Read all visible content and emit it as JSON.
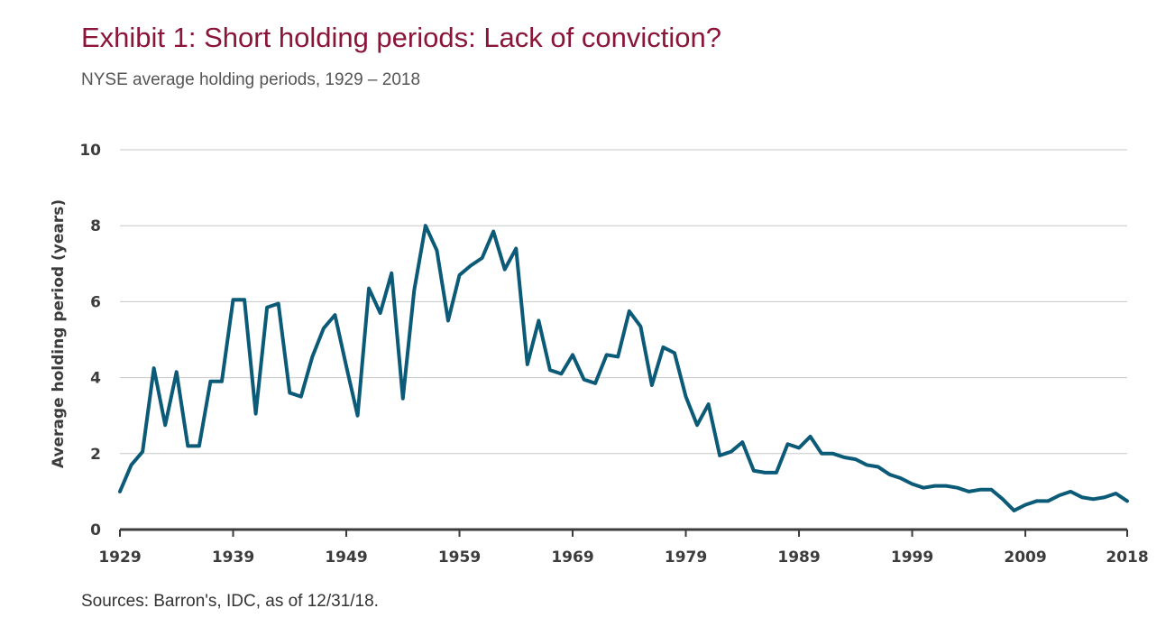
{
  "title": "Exhibit 1: Short holding periods: Lack of conviction?",
  "subtitle": "NYSE average holding periods, 1929 – 2018",
  "source": "Sources: Barron's, IDC, as of 12/31/18.",
  "colors": {
    "title": "#8a1538",
    "line": "#0b5a78",
    "grid": "#c8c8c8",
    "axis": "#3c3c3c"
  },
  "chart_data": {
    "type": "line",
    "title": "Exhibit 1: Short holding periods: Lack of conviction?",
    "subtitle": "NYSE average holding periods, 1929 – 2018",
    "xlabel": "",
    "ylabel": "Average holding period (years)",
    "xlim": [
      1929,
      2018
    ],
    "ylim": [
      0,
      10
    ],
    "y_ticks": [
      0,
      2,
      4,
      6,
      8,
      10
    ],
    "x_tick_labels": [
      "1929",
      "1939",
      "1949",
      "1959",
      "1969",
      "1979",
      "1989",
      "1999",
      "2009",
      "2018"
    ],
    "grid": true,
    "legend": "none",
    "series": [
      {
        "x": [
          1929,
          1930,
          1931,
          1932,
          1933,
          1934,
          1935,
          1936,
          1937,
          1938,
          1939,
          1940,
          1941,
          1942,
          1943,
          1944,
          1945,
          1946,
          1947,
          1948,
          1949,
          1950,
          1951,
          1952,
          1953,
          1954,
          1955,
          1956,
          1957,
          1958,
          1959,
          1960,
          1961,
          1962,
          1963,
          1964,
          1965,
          1966,
          1967,
          1968,
          1969,
          1970,
          1971,
          1972,
          1973,
          1974,
          1975,
          1976,
          1977,
          1978,
          1979,
          1980,
          1981,
          1982,
          1983,
          1984,
          1985,
          1986,
          1987,
          1988,
          1989,
          1990,
          1991,
          1992,
          1993,
          1994,
          1995,
          1996,
          1997,
          1998,
          1999,
          2000,
          2001,
          2002,
          2003,
          2004,
          2005,
          2006,
          2007,
          2008,
          2009,
          2010,
          2011,
          2012,
          2013,
          2014,
          2015,
          2016,
          2017,
          2018
        ],
        "values": [
          1.0,
          1.7,
          2.05,
          4.25,
          2.75,
          4.15,
          2.2,
          2.2,
          3.9,
          3.9,
          6.05,
          6.05,
          3.05,
          5.85,
          5.95,
          3.6,
          3.5,
          4.55,
          5.3,
          5.65,
          4.3,
          3.0,
          6.35,
          5.7,
          6.75,
          3.45,
          6.3,
          8.0,
          7.35,
          5.5,
          6.7,
          6.95,
          7.15,
          7.85,
          6.85,
          7.4,
          4.35,
          5.5,
          4.2,
          4.1,
          4.6,
          3.95,
          3.85,
          4.6,
          4.55,
          5.75,
          5.35,
          3.8,
          4.8,
          4.65,
          3.5,
          2.75,
          3.3,
          1.95,
          2.05,
          2.3,
          1.55,
          1.5,
          1.5,
          2.25,
          2.15,
          2.45,
          2.0,
          2.0,
          1.9,
          1.85,
          1.7,
          1.65,
          1.45,
          1.35,
          1.2,
          1.1,
          1.15,
          1.15,
          1.1,
          1.0,
          1.05,
          1.05,
          0.8,
          0.5,
          0.65,
          0.75,
          0.75,
          0.9,
          1.0,
          0.85,
          0.8,
          0.85,
          0.95,
          0.75
        ]
      }
    ]
  }
}
